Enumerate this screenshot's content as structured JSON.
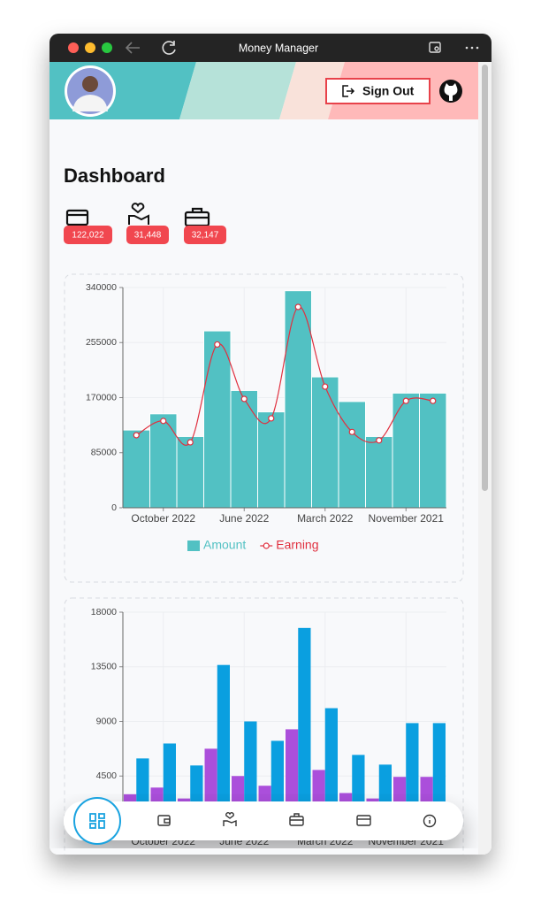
{
  "window": {
    "title": "Money Manager"
  },
  "header": {
    "sign_out": "Sign Out"
  },
  "dashboard": {
    "title": "Dashboard",
    "stats": [
      "122,022",
      "31,448",
      "32,147"
    ]
  },
  "charts": [
    {
      "type": "bar",
      "categories": [
        null,
        "October 2022",
        null,
        null,
        "June 2022",
        null,
        null,
        "March 2022",
        null,
        null,
        "November 2021",
        null
      ],
      "series": [
        {
          "name": "Amount",
          "color": "#52c1c3",
          "values": [
            120000,
            145000,
            110000,
            273000,
            181000,
            148000,
            335000,
            202000,
            164000,
            110000,
            177000,
            177000
          ]
        },
        {
          "name": "Earning",
          "color": "#e0303f",
          "type": "line",
          "values": [
            112000,
            134000,
            101000,
            252000,
            168000,
            138000,
            310000,
            187000,
            117000,
            104000,
            165000,
            165000
          ]
        }
      ],
      "ylim": [
        0,
        340000
      ],
      "yticks": [
        0,
        85000,
        170000,
        255000,
        340000
      ],
      "grid": true,
      "legend": "bottom"
    },
    {
      "type": "bar",
      "categories": [
        null,
        "October 2022",
        null,
        null,
        "June 2022",
        null,
        null,
        "March 2022",
        null,
        null,
        "November 2021",
        null
      ],
      "series": [
        {
          "color": "#ab4fdb",
          "values": [
            3000,
            3550,
            2650,
            6750,
            4500,
            3700,
            8350,
            5000,
            3100,
            2650,
            4430,
            4430
          ]
        },
        {
          "color": "#0a9fe0",
          "values": [
            5950,
            7180,
            5370,
            13650,
            9000,
            7400,
            16700,
            10090,
            6240,
            5440,
            8860,
            8860
          ]
        }
      ],
      "ylim": [
        0,
        18000
      ],
      "yticks": [
        4500,
        9000,
        13500,
        18000
      ],
      "grid": true
    }
  ]
}
